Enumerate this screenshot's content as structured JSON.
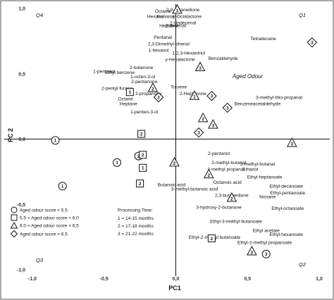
{
  "chart_data": {
    "type": "scatter",
    "title": "",
    "xlabel": "PC1",
    "ylabel": "PC 2",
    "xlim": [
      -1.0,
      1.0
    ],
    "ylim": [
      -1.0,
      1.0
    ],
    "xticks": [
      "-1,0",
      "-0,5",
      "0,0",
      "0,5",
      "1,0"
    ],
    "yticks": [
      "1,0",
      "0,5",
      "0,0",
      "-0,5",
      "-1,0"
    ],
    "quadrants": [
      "Q1",
      "Q2",
      "Q3",
      "Q4"
    ],
    "annotation": "Aged Odour",
    "legend_position": "bottom-left",
    "legend": {
      "groups": [
        {
          "shape": "circle",
          "label": "Aged odour score < 5.5"
        },
        {
          "shape": "square",
          "label": "5.5 < Aged odour score < 6.0"
        },
        {
          "shape": "triangle",
          "label": "6.0 < Aged odour score < 6.5"
        },
        {
          "shape": "diamond",
          "label": "Aged odour score > 6.5"
        }
      ],
      "time_title": "Processing Time:",
      "time_items": [
        "1 = 14-15 months",
        "2 = 17-18 months",
        "3 = 21-22 months"
      ]
    },
    "samples": [
      {
        "shape": "circle",
        "time": "1",
        "x": -0.84,
        "y": -0.01
      },
      {
        "shape": "circle",
        "time": "1",
        "x": -0.41,
        "y": -0.18
      },
      {
        "shape": "circle",
        "time": "2",
        "x": -0.26,
        "y": -0.13
      },
      {
        "shape": "circle",
        "time": "1",
        "x": -0.79,
        "y": -0.36
      },
      {
        "shape": "circle",
        "time": "3",
        "x": 0.63,
        "y": -0.88
      },
      {
        "shape": "square",
        "time": "1",
        "x": -0.32,
        "y": 0.36
      },
      {
        "shape": "square",
        "time": "2",
        "x": -0.24,
        "y": 0.04
      },
      {
        "shape": "square",
        "time": "2",
        "x": -0.23,
        "y": -0.12
      },
      {
        "shape": "square",
        "time": "1",
        "x": -0.23,
        "y": -0.22
      },
      {
        "shape": "square",
        "time": "2",
        "x": -0.25,
        "y": -0.34
      },
      {
        "shape": "square",
        "time": "2",
        "x": 0.25,
        "y": -0.76
      },
      {
        "shape": "triangle",
        "time": "1",
        "x": 0.01,
        "y": 0.99
      },
      {
        "shape": "triangle",
        "time": "2",
        "x": -0.16,
        "y": 0.39
      },
      {
        "shape": "triangle",
        "time": "3",
        "x": 0.17,
        "y": 0.55
      },
      {
        "shape": "triangle",
        "time": "1",
        "x": 0.13,
        "y": 0.33
      },
      {
        "shape": "triangle",
        "time": "2",
        "x": 0.19,
        "y": 0.16
      },
      {
        "shape": "triangle",
        "time": "3",
        "x": 0.26,
        "y": 0.11
      },
      {
        "shape": "triangle",
        "time": "3",
        "x": 0.81,
        "y": -0.03
      },
      {
        "shape": "triangle",
        "time": "2",
        "x": -0.01,
        "y": -0.18
      },
      {
        "shape": "triangle",
        "time": "2",
        "x": 0.23,
        "y": -0.27
      },
      {
        "shape": "triangle",
        "time": "2",
        "x": 0.39,
        "y": -0.45
      },
      {
        "shape": "triangle",
        "time": "3",
        "x": 0.53,
        "y": -0.86
      },
      {
        "shape": "diamond",
        "time": "3",
        "x": 0.95,
        "y": 0.74
      },
      {
        "shape": "diamond",
        "time": "2",
        "x": -0.12,
        "y": 0.32
      },
      {
        "shape": "diamond",
        "time": "3",
        "x": 0.25,
        "y": 0.33
      },
      {
        "shape": "diamond",
        "time": "3",
        "x": 0.36,
        "y": 0.24
      },
      {
        "shape": "diamond",
        "time": "3",
        "x": 0.16,
        "y": 0.05
      }
    ],
    "compounds": [
      {
        "name": "Octanal",
        "x": -0.09,
        "y": 0.98
      },
      {
        "name": "2,3-octanedione",
        "x": 0.05,
        "y": 0.99
      },
      {
        "name": "Hexanal",
        "x": -0.14,
        "y": 0.94
      },
      {
        "name": "Nonanal",
        "x": -0.07,
        "y": 0.94
      },
      {
        "name": "γ-Octalactone",
        "x": 0.08,
        "y": 0.94
      },
      {
        "name": "2-Undecenal",
        "x": 0.05,
        "y": 0.89
      },
      {
        "name": "Heptanal",
        "x": -0.05,
        "y": 0.87
      },
      {
        "name": "2-decenal",
        "x": 0.0,
        "y": 0.87
      },
      {
        "name": "Tetradecane",
        "x": 0.61,
        "y": 0.77
      },
      {
        "name": "Pentanal",
        "x": -0.09,
        "y": 0.78
      },
      {
        "name": "2,3-Dimethyl-phenol",
        "x": -0.05,
        "y": 0.73
      },
      {
        "name": "1-hexanol",
        "x": -0.12,
        "y": 0.68
      },
      {
        "name": "1,2,3-Hexantriol",
        "x": 0.09,
        "y": 0.66
      },
      {
        "name": "γ-Hexalactone",
        "x": 0.03,
        "y": 0.61
      },
      {
        "name": "Benzaldehyde",
        "x": 0.33,
        "y": 0.62
      },
      {
        "name": "2-butanone",
        "x": -0.24,
        "y": 0.55
      },
      {
        "name": "1-pentanol",
        "x": -0.5,
        "y": 0.52
      },
      {
        "name": "Ethyl benzene",
        "x": -0.39,
        "y": 0.51
      },
      {
        "name": "1-octen-3-ol",
        "x": -0.23,
        "y": 0.48
      },
      {
        "name": "2-pentanone",
        "x": -0.22,
        "y": 0.44
      },
      {
        "name": "2-pentyl furane",
        "x": -0.41,
        "y": 0.39
      },
      {
        "name": "Toluene",
        "x": 0.02,
        "y": 0.4
      },
      {
        "name": "2-propanone",
        "x": -0.19,
        "y": 0.35
      },
      {
        "name": "2-Heptanone",
        "x": 0.12,
        "y": 0.35
      },
      {
        "name": "Octane",
        "x": -0.35,
        "y": 0.31
      },
      {
        "name": "3-methyl-thio-propanal",
        "x": 0.72,
        "y": 0.32
      },
      {
        "name": "Heptane",
        "x": -0.33,
        "y": 0.27
      },
      {
        "name": "Benzeneacetaldehyde",
        "x": 0.57,
        "y": 0.27
      },
      {
        "name": "1-penten-3-ol",
        "x": -0.22,
        "y": 0.21
      },
      {
        "name": "2-pentanol",
        "x": 0.3,
        "y": -0.11
      },
      {
        "name": "2-methyl-butanal",
        "x": 0.37,
        "y": -0.18
      },
      {
        "name": "3-methyl-butanal",
        "x": 0.57,
        "y": -0.19
      },
      {
        "name": "2-methyl propanal",
        "x": 0.35,
        "y": -0.23
      },
      {
        "name": "Ethanol",
        "x": 0.52,
        "y": -0.23
      },
      {
        "name": "Ethyl-heptanoate",
        "x": 0.62,
        "y": -0.29
      },
      {
        "name": "Butanoic acid",
        "x": -0.03,
        "y": -0.35
      },
      {
        "name": "Octanoic acid",
        "x": 0.36,
        "y": -0.33
      },
      {
        "name": "Ethyl-decanoate",
        "x": 0.77,
        "y": -0.36
      },
      {
        "name": "3-methyl-butanoic acid",
        "x": 0.13,
        "y": -0.38
      },
      {
        "name": "Ethyl-pentanoate",
        "x": 0.78,
        "y": -0.41
      },
      {
        "name": "2,3-butanedione",
        "x": 0.39,
        "y": -0.43
      },
      {
        "name": "Nonane",
        "x": 0.64,
        "y": -0.44
      },
      {
        "name": "3-hydroxy-2-butanone",
        "x": 0.3,
        "y": -0.52
      },
      {
        "name": "Ethyl-octanoate",
        "x": 0.78,
        "y": -0.53
      },
      {
        "name": "Ethyl-3-methyl-butanoate",
        "x": 0.42,
        "y": -0.63
      },
      {
        "name": "Ethyl acetate",
        "x": 0.63,
        "y": -0.7
      },
      {
        "name": "Ethyl-hexanoate",
        "x": 0.77,
        "y": -0.73
      },
      {
        "name": "Ethyl-2-methyl butanoate",
        "x": 0.27,
        "y": -0.75
      },
      {
        "name": "Ethyl-2-methyl propanoate",
        "x": 0.62,
        "y": -0.79
      }
    ]
  }
}
